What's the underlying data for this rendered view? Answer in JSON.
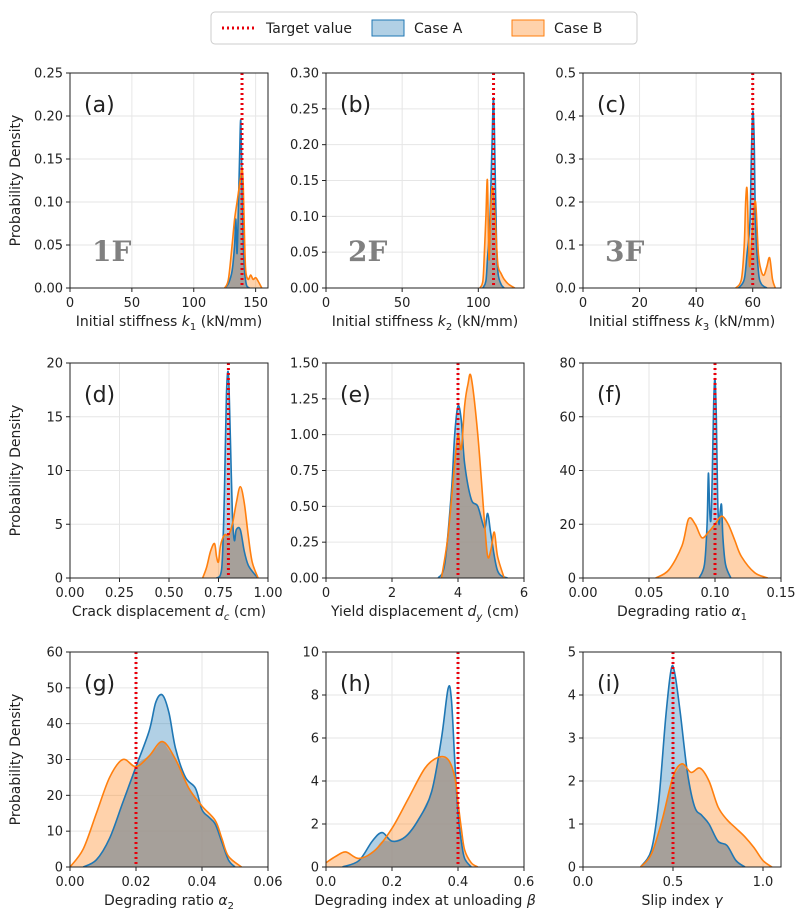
{
  "legend": {
    "items": [
      {
        "label": "Target value",
        "kind": "line",
        "color": "#e8000b"
      },
      {
        "label": "Case A",
        "kind": "patch",
        "color": "#1f77b4"
      },
      {
        "label": "Case B",
        "kind": "patch",
        "color": "#ff7f0e"
      }
    ]
  },
  "colors": {
    "caseA": "#1f77b4",
    "caseB": "#ff7f0e",
    "target": "#e8000b",
    "overlap": "#9a9a9a"
  },
  "chart_data": [
    {
      "id": "a",
      "type": "area",
      "panel_label": "(a)",
      "floor_label": "1F",
      "xlabel_parts": [
        [
          "Initial stiffness ",
          "n"
        ],
        [
          "k",
          "i"
        ],
        [
          "1",
          "s"
        ],
        [
          " (kN/mm)",
          "n"
        ]
      ],
      "ylabel": "Probability Density",
      "xlim": [
        0,
        160
      ],
      "ylim": [
        0,
        0.25
      ],
      "xticks": [
        0,
        50,
        100,
        150
      ],
      "xticklabels": [
        "0",
        "50",
        "100",
        "150"
      ],
      "yticks": [
        0,
        0.05,
        0.1,
        0.15,
        0.2,
        0.25
      ],
      "yticklabels": [
        "0.00",
        "0.05",
        "0.10",
        "0.15",
        "0.20",
        "0.25"
      ],
      "target": 139,
      "series": [
        {
          "name": "Case A",
          "x": [
            125,
            128,
            131,
            133,
            134,
            135,
            136,
            137,
            138,
            139,
            140,
            141,
            142,
            143,
            145
          ],
          "y": [
            0,
            0.005,
            0.02,
            0.05,
            0.08,
            0.04,
            0.09,
            0.15,
            0.195,
            0.12,
            0.05,
            0.02,
            0.008,
            0.002,
            0
          ]
        },
        {
          "name": "Case B",
          "x": [
            125,
            128,
            131,
            133,
            135,
            136,
            137,
            138,
            139,
            140,
            141,
            142,
            144,
            146,
            148,
            150,
            152,
            155
          ],
          "y": [
            0,
            0.01,
            0.05,
            0.08,
            0.1,
            0.11,
            0.12,
            0.13,
            0.14,
            0.12,
            0.06,
            0.02,
            0.01,
            0.015,
            0.01,
            0.012,
            0.008,
            0
          ]
        }
      ]
    },
    {
      "id": "b",
      "type": "area",
      "panel_label": "(b)",
      "floor_label": "2F",
      "xlabel_parts": [
        [
          "Initial stiffness ",
          "n"
        ],
        [
          "k",
          "i"
        ],
        [
          "2",
          "s"
        ],
        [
          " (kN/mm)",
          "n"
        ]
      ],
      "ylabel": "",
      "xlim": [
        0,
        130
      ],
      "ylim": [
        0,
        0.3
      ],
      "xticks": [
        0,
        50,
        100
      ],
      "xticklabels": [
        "0",
        "50",
        "100"
      ],
      "yticks": [
        0,
        0.05,
        0.1,
        0.15,
        0.2,
        0.25,
        0.3
      ],
      "yticklabels": [
        "0.00",
        "0.05",
        "0.10",
        "0.15",
        "0.20",
        "0.25",
        "0.30"
      ],
      "target": 110,
      "series": [
        {
          "name": "Case A",
          "x": [
            103,
            105,
            106,
            107,
            108,
            109,
            110,
            111,
            112,
            113,
            115,
            117
          ],
          "y": [
            0,
            0.01,
            0.04,
            0.07,
            0.12,
            0.2,
            0.265,
            0.17,
            0.06,
            0.02,
            0.005,
            0
          ]
        },
        {
          "name": "Case B",
          "x": [
            101,
            103,
            104,
            105,
            106,
            107,
            108,
            109,
            110,
            111,
            112,
            113,
            115,
            117,
            120,
            124
          ],
          "y": [
            0,
            0.01,
            0.05,
            0.1,
            0.15,
            0.04,
            0.1,
            0.14,
            0.13,
            0.1,
            0.06,
            0.03,
            0.02,
            0.012,
            0.005,
            0
          ]
        }
      ]
    },
    {
      "id": "c",
      "type": "area",
      "panel_label": "(c)",
      "floor_label": "3F",
      "xlabel_parts": [
        [
          "Initial stiffness ",
          "n"
        ],
        [
          "k",
          "i"
        ],
        [
          "3",
          "s"
        ],
        [
          " (kN/mm)",
          "n"
        ]
      ],
      "ylabel": "",
      "xlim": [
        0,
        70
      ],
      "ylim": [
        0,
        0.5
      ],
      "xticks": [
        0,
        20,
        40,
        60
      ],
      "xticklabels": [
        "0",
        "20",
        "40",
        "60"
      ],
      "yticks": [
        0,
        0.1,
        0.2,
        0.3,
        0.4,
        0.5
      ],
      "yticklabels": [
        "0.0",
        "0.1",
        "0.2",
        "0.3",
        "0.4",
        "0.5"
      ],
      "target": 60,
      "series": [
        {
          "name": "Case A",
          "x": [
            55,
            57,
            58,
            59,
            59.5,
            60,
            60.5,
            61,
            62,
            63,
            65
          ],
          "y": [
            0,
            0.02,
            0.08,
            0.15,
            0.3,
            0.41,
            0.35,
            0.15,
            0.04,
            0.01,
            0
          ]
        },
        {
          "name": "Case B",
          "x": [
            54,
            56,
            57,
            57.5,
            58,
            58.5,
            59,
            60,
            61,
            62,
            63,
            64,
            65,
            66,
            67,
            68
          ],
          "y": [
            0,
            0.02,
            0.1,
            0.2,
            0.23,
            0.12,
            0.05,
            0.15,
            0.2,
            0.08,
            0.04,
            0.03,
            0.05,
            0.07,
            0.02,
            0
          ]
        }
      ]
    },
    {
      "id": "d",
      "type": "area",
      "panel_label": "(d)",
      "floor_label": "",
      "xlabel_parts": [
        [
          "Crack displacement ",
          "n"
        ],
        [
          "d",
          "i"
        ],
        [
          "c",
          "si"
        ],
        [
          " (cm)",
          "n"
        ]
      ],
      "ylabel": "Probability Density",
      "xlim": [
        0,
        1.0
      ],
      "ylim": [
        0,
        20
      ],
      "xticks": [
        0,
        0.25,
        0.5,
        0.75,
        1.0
      ],
      "xticklabels": [
        "0.00",
        "0.25",
        "0.50",
        "0.75",
        "1.00"
      ],
      "yticks": [
        0,
        5,
        10,
        15,
        20
      ],
      "yticklabels": [
        "0",
        "5",
        "10",
        "15",
        "20"
      ],
      "target": 0.8,
      "series": [
        {
          "name": "Case A",
          "x": [
            0.74,
            0.76,
            0.77,
            0.78,
            0.79,
            0.8,
            0.81,
            0.82,
            0.83,
            0.84,
            0.86,
            0.88,
            0.9,
            0.93,
            0.95
          ],
          "y": [
            0,
            0.3,
            2,
            8,
            17,
            19,
            13,
            6,
            3.5,
            4.5,
            4.5,
            2.5,
            1.2,
            0.4,
            0
          ]
        },
        {
          "name": "Case B",
          "x": [
            0.67,
            0.69,
            0.71,
            0.73,
            0.74,
            0.75,
            0.76,
            0.78,
            0.8,
            0.82,
            0.84,
            0.86,
            0.88,
            0.9,
            0.92,
            0.95
          ],
          "y": [
            0,
            1,
            2.5,
            3.2,
            2,
            1.5,
            3,
            4,
            4,
            5,
            7,
            8.5,
            7,
            4,
            1.5,
            0
          ]
        }
      ]
    },
    {
      "id": "e",
      "type": "area",
      "panel_label": "(e)",
      "floor_label": "",
      "xlabel_parts": [
        [
          "Yield displacement ",
          "n"
        ],
        [
          "d",
          "i"
        ],
        [
          "y",
          "si"
        ],
        [
          " (cm)",
          "n"
        ]
      ],
      "ylabel": "",
      "xlim": [
        0,
        6
      ],
      "ylim": [
        0,
        1.5
      ],
      "xticks": [
        0,
        2,
        4,
        6
      ],
      "xticklabels": [
        "0",
        "2",
        "4",
        "6"
      ],
      "yticks": [
        0,
        0.25,
        0.5,
        0.75,
        1.0,
        1.25,
        1.5
      ],
      "yticklabels": [
        "0.00",
        "0.25",
        "0.50",
        "0.75",
        "1.00",
        "1.25",
        "1.50"
      ],
      "target": 4.0,
      "series": [
        {
          "name": "Case A",
          "x": [
            3.4,
            3.6,
            3.8,
            3.9,
            4.0,
            4.1,
            4.2,
            4.4,
            4.6,
            4.8,
            4.9,
            5.0,
            5.2,
            5.5
          ],
          "y": [
            0,
            0.1,
            0.6,
            1.0,
            1.2,
            1.1,
            0.8,
            0.55,
            0.5,
            0.35,
            0.45,
            0.3,
            0.05,
            0
          ]
        },
        {
          "name": "Case B",
          "x": [
            3.5,
            3.7,
            3.9,
            4.0,
            4.1,
            4.2,
            4.3,
            4.4,
            4.6,
            4.8,
            4.9,
            5.0,
            5.1,
            5.2,
            5.4
          ],
          "y": [
            0,
            0.3,
            0.8,
            1.0,
            0.9,
            1.2,
            1.35,
            1.4,
            1.0,
            0.4,
            0.15,
            0.2,
            0.32,
            0.15,
            0
          ]
        }
      ]
    },
    {
      "id": "f",
      "type": "area",
      "panel_label": "(f)",
      "floor_label": "",
      "xlabel_parts": [
        [
          "Degrading ratio ",
          "n"
        ],
        [
          "α",
          "i"
        ],
        [
          "1",
          "s"
        ]
      ],
      "ylabel": "",
      "xlim": [
        0,
        0.15
      ],
      "ylim": [
        0,
        80
      ],
      "xticks": [
        0,
        0.05,
        0.1,
        0.15
      ],
      "xticklabels": [
        "0.00",
        "0.05",
        "0.10",
        "0.15"
      ],
      "yticks": [
        0,
        20,
        40,
        60,
        80
      ],
      "yticklabels": [
        "0",
        "20",
        "40",
        "60",
        "80"
      ],
      "target": 0.1,
      "series": [
        {
          "name": "Case A",
          "x": [
            0.088,
            0.092,
            0.094,
            0.095,
            0.096,
            0.097,
            0.098,
            0.099,
            0.1,
            0.101,
            0.102,
            0.103,
            0.104,
            0.105,
            0.106,
            0.108,
            0.112
          ],
          "y": [
            0,
            5,
            20,
            39,
            25,
            22,
            40,
            65,
            74,
            60,
            30,
            20,
            25,
            27,
            15,
            5,
            0
          ]
        },
        {
          "name": "Case B",
          "x": [
            0.055,
            0.065,
            0.075,
            0.08,
            0.085,
            0.09,
            0.095,
            0.1,
            0.105,
            0.11,
            0.115,
            0.12,
            0.13,
            0.14
          ],
          "y": [
            0,
            3,
            12,
            22,
            20,
            15,
            17,
            20,
            23,
            20,
            14,
            8,
            2,
            0
          ]
        }
      ]
    },
    {
      "id": "g",
      "type": "area",
      "panel_label": "(g)",
      "floor_label": "",
      "xlabel_parts": [
        [
          "Degrading ratio ",
          "n"
        ],
        [
          "α",
          "i"
        ],
        [
          "2",
          "s"
        ]
      ],
      "ylabel": "Probability Density",
      "xlim": [
        0,
        0.06
      ],
      "ylim": [
        0,
        60
      ],
      "xticks": [
        0,
        0.02,
        0.04,
        0.06
      ],
      "xticklabels": [
        "0.00",
        "0.02",
        "0.04",
        "0.06"
      ],
      "yticks": [
        0,
        10,
        20,
        30,
        40,
        50,
        60
      ],
      "yticklabels": [
        "0",
        "10",
        "20",
        "30",
        "40",
        "50",
        "60"
      ],
      "target": 0.02,
      "series": [
        {
          "name": "Case A",
          "x": [
            0.004,
            0.008,
            0.012,
            0.016,
            0.02,
            0.024,
            0.026,
            0.028,
            0.03,
            0.032,
            0.035,
            0.038,
            0.04,
            0.042,
            0.044,
            0.046,
            0.048,
            0.05
          ],
          "y": [
            0,
            2,
            8,
            18,
            28,
            38,
            46,
            48,
            43,
            33,
            25,
            22,
            16,
            14,
            12,
            7,
            2,
            0
          ]
        },
        {
          "name": "Case B",
          "x": [
            0.0,
            0.004,
            0.008,
            0.012,
            0.016,
            0.02,
            0.024,
            0.028,
            0.032,
            0.036,
            0.04,
            0.044,
            0.046,
            0.048,
            0.052
          ],
          "y": [
            0,
            5,
            15,
            25,
            30,
            28,
            31,
            35,
            30,
            22,
            17,
            13,
            8,
            3,
            0
          ]
        }
      ]
    },
    {
      "id": "h",
      "type": "area",
      "panel_label": "(h)",
      "floor_label": "",
      "xlabel_parts": [
        [
          "Degrading index at unloading ",
          "n"
        ],
        [
          "β",
          "i"
        ]
      ],
      "ylabel": "",
      "xlim": [
        0,
        0.6
      ],
      "ylim": [
        0,
        10
      ],
      "xticks": [
        0,
        0.2,
        0.4,
        0.6
      ],
      "xticklabels": [
        "0.0",
        "0.2",
        "0.4",
        "0.6"
      ],
      "yticks": [
        0,
        2,
        4,
        6,
        8,
        10
      ],
      "yticklabels": [
        "0",
        "2",
        "4",
        "6",
        "8",
        "10"
      ],
      "target": 0.4,
      "series": [
        {
          "name": "Case A",
          "x": [
            0.05,
            0.1,
            0.14,
            0.17,
            0.2,
            0.24,
            0.28,
            0.32,
            0.35,
            0.37,
            0.38,
            0.39,
            0.4,
            0.41,
            0.42,
            0.44
          ],
          "y": [
            0,
            0.3,
            1.2,
            1.6,
            1.2,
            1.4,
            2.2,
            3.5,
            6,
            8.3,
            7.8,
            5,
            2.5,
            1.2,
            0.4,
            0
          ]
        },
        {
          "name": "Case B",
          "x": [
            0,
            0.03,
            0.06,
            0.1,
            0.15,
            0.2,
            0.25,
            0.3,
            0.34,
            0.37,
            0.39,
            0.4,
            0.41,
            0.42,
            0.44,
            0.46
          ],
          "y": [
            0.2,
            0.5,
            0.7,
            0.4,
            0.8,
            1.8,
            3.2,
            4.6,
            5.1,
            5.0,
            4.2,
            3.0,
            1.8,
            0.8,
            0.2,
            0
          ]
        }
      ]
    },
    {
      "id": "i",
      "type": "area",
      "panel_label": "(i)",
      "floor_label": "",
      "xlabel_parts": [
        [
          "Slip index ",
          "n"
        ],
        [
          "γ",
          "i"
        ]
      ],
      "ylabel": "",
      "xlim": [
        0,
        1.1
      ],
      "ylim": [
        0,
        5
      ],
      "xticks": [
        0,
        0.5,
        1.0
      ],
      "xticklabels": [
        "0.0",
        "0.5",
        "1.0"
      ],
      "yticks": [
        0,
        1,
        2,
        3,
        4,
        5
      ],
      "yticklabels": [
        "0",
        "1",
        "2",
        "3",
        "4",
        "5"
      ],
      "target": 0.5,
      "series": [
        {
          "name": "Case A",
          "x": [
            0.32,
            0.38,
            0.42,
            0.46,
            0.49,
            0.51,
            0.54,
            0.58,
            0.62,
            0.66,
            0.7,
            0.75,
            0.8,
            0.85,
            0.9
          ],
          "y": [
            0,
            0.4,
            1.5,
            3.5,
            4.6,
            4.5,
            3.6,
            2.2,
            1.4,
            1.2,
            1.0,
            0.6,
            0.5,
            0.15,
            0
          ]
        },
        {
          "name": "Case B",
          "x": [
            0.32,
            0.38,
            0.44,
            0.5,
            0.55,
            0.6,
            0.65,
            0.7,
            0.75,
            0.8,
            0.85,
            0.9,
            0.95,
            1.0,
            1.05
          ],
          "y": [
            0,
            0.3,
            1.1,
            2.1,
            2.4,
            2.2,
            2.3,
            2.0,
            1.4,
            1.1,
            0.9,
            0.7,
            0.45,
            0.15,
            0
          ]
        }
      ]
    }
  ]
}
